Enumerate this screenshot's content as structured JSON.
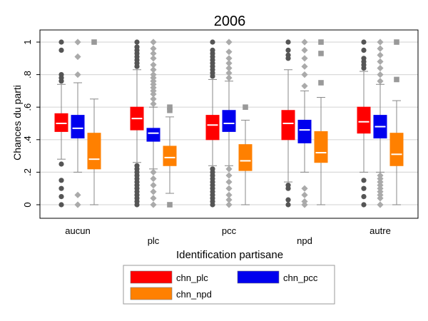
{
  "chart_data": {
    "type": "boxplot",
    "title": "2006",
    "xlabel": "Identification partisane",
    "ylabel": "Chances du parti",
    "ylim": [
      0,
      1
    ],
    "yticks": [
      0,
      0.2,
      0.4,
      0.6,
      0.8,
      1
    ],
    "ytick_labels": [
      "0",
      ".2",
      ".4",
      ".6",
      ".8",
      "1"
    ],
    "grid": true,
    "legend_position": "bottom",
    "categories": [
      "aucun",
      "plc",
      "pcc",
      "npd",
      "autre"
    ],
    "series": [
      {
        "name": "chn_plc",
        "color": "#ff0000",
        "outlier_color": "#555555",
        "outlier_shape": "circle",
        "boxes": [
          {
            "whisker_low": 0.28,
            "q1": 0.45,
            "median": 0.5,
            "q3": 0.56,
            "whisker_high": 0.74,
            "outliers": [
              0,
              0.05,
              0.1,
              0.15,
              0.25,
              0.76,
              0.78,
              0.8,
              0.95,
              1.0
            ]
          },
          {
            "whisker_low": 0.26,
            "q1": 0.46,
            "median": 0.53,
            "q3": 0.6,
            "whisker_high": 0.83,
            "outliers": [
              0,
              0.02,
              0.04,
              0.06,
              0.08,
              0.1,
              0.12,
              0.14,
              0.16,
              0.18,
              0.2,
              0.22,
              0.24,
              0.85,
              0.87,
              0.89,
              0.91,
              0.93,
              0.95,
              0.97,
              1.0
            ]
          },
          {
            "whisker_low": 0.24,
            "q1": 0.4,
            "median": 0.49,
            "q3": 0.55,
            "whisker_high": 0.77,
            "outliers": [
              0,
              0.02,
              0.04,
              0.06,
              0.08,
              0.1,
              0.12,
              0.14,
              0.16,
              0.18,
              0.2,
              0.22,
              0.79,
              0.81,
              0.83,
              0.85,
              0.87,
              0.89,
              0.91,
              0.93,
              0.95,
              1.0
            ]
          },
          {
            "whisker_low": 0.14,
            "q1": 0.4,
            "median": 0.5,
            "q3": 0.58,
            "whisker_high": 0.83,
            "outliers": [
              0,
              0.03,
              0.1,
              0.12,
              0.9,
              0.92,
              0.95,
              1.0
            ]
          },
          {
            "whisker_low": 0.2,
            "q1": 0.44,
            "median": 0.51,
            "q3": 0.6,
            "whisker_high": 0.82,
            "outliers": [
              0,
              0.05,
              0.1,
              0.15,
              0.84,
              0.86,
              0.88,
              0.9,
              0.95,
              1.0
            ]
          }
        ]
      },
      {
        "name": "chn_pcc",
        "color": "#0000ee",
        "outlier_color": "#aaaaaa",
        "outlier_shape": "diamond",
        "boxes": [
          {
            "whisker_low": 0.2,
            "q1": 0.41,
            "median": 0.47,
            "q3": 0.55,
            "whisker_high": 0.75,
            "outliers": [
              0,
              0.06,
              0.8,
              0.91,
              1.0
            ]
          },
          {
            "whisker_low": 0.22,
            "q1": 0.39,
            "median": 0.44,
            "q3": 0.47,
            "whisker_high": 0.6,
            "outliers": [
              0,
              0.04,
              0.08,
              0.12,
              0.16,
              0.2,
              0.62,
              0.65,
              0.68,
              0.7,
              0.72,
              0.74,
              0.76,
              0.78,
              0.8,
              0.83,
              0.86,
              0.9,
              0.93,
              0.96,
              1.0
            ]
          },
          {
            "whisker_low": 0.24,
            "q1": 0.45,
            "median": 0.5,
            "q3": 0.58,
            "whisker_high": 0.76,
            "outliers": [
              0,
              0.03,
              0.06,
              0.1,
              0.14,
              0.18,
              0.22,
              0.78,
              0.81,
              0.84,
              0.87,
              0.9,
              0.94,
              1.0
            ]
          },
          {
            "whisker_low": 0.2,
            "q1": 0.38,
            "median": 0.46,
            "q3": 0.52,
            "whisker_high": 0.7,
            "outliers": [
              0,
              0.02,
              0.06,
              0.1,
              0.73,
              0.8,
              0.85,
              0.9,
              0.95,
              1.0
            ]
          },
          {
            "whisker_low": 0.2,
            "q1": 0.41,
            "median": 0.48,
            "q3": 0.55,
            "whisker_high": 0.74,
            "outliers": [
              0,
              0.04,
              0.06,
              0.08,
              0.1,
              0.12,
              0.14,
              0.16,
              0.18,
              0.76,
              0.8,
              0.84,
              0.88,
              0.92,
              0.96,
              1.0
            ]
          }
        ]
      },
      {
        "name": "chn_npd",
        "color": "#ff8000",
        "outlier_color": "#999999",
        "outlier_shape": "square",
        "boxes": [
          {
            "whisker_low": 0,
            "q1": 0.22,
            "median": 0.28,
            "q3": 0.44,
            "whisker_high": 0.65,
            "outliers": [
              1.0
            ]
          },
          {
            "whisker_low": 0.07,
            "q1": 0.24,
            "median": 0.29,
            "q3": 0.36,
            "whisker_high": 0.54,
            "outliers": [
              0,
              0.58,
              0.6
            ]
          },
          {
            "whisker_low": 0,
            "q1": 0.21,
            "median": 0.27,
            "q3": 0.37,
            "whisker_high": 0.52,
            "outliers": [
              0.6
            ]
          },
          {
            "whisker_low": 0,
            "q1": 0.26,
            "median": 0.32,
            "q3": 0.45,
            "whisker_high": 0.66,
            "outliers": [
              0.75,
              0.93,
              1.0
            ]
          },
          {
            "whisker_low": 0,
            "q1": 0.24,
            "median": 0.31,
            "q3": 0.44,
            "whisker_high": 0.64,
            "outliers": [
              0.77,
              1.0
            ]
          }
        ]
      }
    ]
  }
}
